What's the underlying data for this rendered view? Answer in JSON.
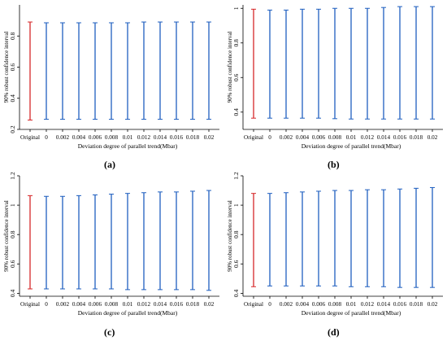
{
  "chart_data": [
    {
      "type": "errorbar",
      "panel_label": "(a)",
      "categories": [
        "Original",
        "0",
        "0.002",
        "0.004",
        "0.006",
        "0.008",
        "0.01",
        "0.012",
        "0.014",
        "0.016",
        "0.018",
        "0.02"
      ],
      "lower": [
        0.26,
        0.265,
        0.265,
        0.265,
        0.265,
        0.265,
        0.265,
        0.265,
        0.265,
        0.265,
        0.265,
        0.265
      ],
      "upper": [
        0.89,
        0.885,
        0.885,
        0.885,
        0.885,
        0.885,
        0.885,
        0.89,
        0.89,
        0.89,
        0.89,
        0.89
      ],
      "yticks": [
        "0.2",
        "0.4",
        "0.6",
        "0.8"
      ],
      "ylim": [
        0.2,
        1.0
      ],
      "xlabel": "Deviation degree of parallel trend(Mbar)",
      "ylabel": "90% robust confidence interval",
      "colors": {
        "original": "#d62728",
        "other": "#1f5fbf"
      }
    },
    {
      "type": "errorbar",
      "panel_label": "(b)",
      "categories": [
        "Original",
        "0",
        "0.002",
        "0.004",
        "0.006",
        "0.008",
        "0.01",
        "0.012",
        "0.014",
        "0.016",
        "0.018",
        "0.02"
      ],
      "lower": [
        0.365,
        0.365,
        0.365,
        0.365,
        0.365,
        0.362,
        0.36,
        0.36,
        0.36,
        0.36,
        0.36,
        0.36
      ],
      "upper": [
        0.995,
        0.99,
        0.99,
        0.995,
        0.995,
        1.0,
        1.0,
        1.0,
        1.005,
        1.01,
        1.01,
        1.01
      ],
      "yticks": [
        "0.4",
        "0.6",
        "0.8",
        "1"
      ],
      "ylim": [
        0.3,
        1.02
      ],
      "xlabel": "Deviation degree of parallel trend(Mbar)",
      "ylabel": "90% robust confidence interval",
      "colors": {
        "original": "#d62728",
        "other": "#1f5fbf"
      }
    },
    {
      "type": "errorbar",
      "panel_label": "(c)",
      "categories": [
        "Original",
        "0",
        "0.002",
        "0.004",
        "0.006",
        "0.008",
        "0.01",
        "0.012",
        "0.014",
        "0.016",
        "0.018",
        "0.02"
      ],
      "lower": [
        0.43,
        0.43,
        0.43,
        0.43,
        0.43,
        0.43,
        0.425,
        0.425,
        0.425,
        0.425,
        0.425,
        0.42
      ],
      "upper": [
        1.065,
        1.06,
        1.06,
        1.065,
        1.07,
        1.075,
        1.08,
        1.085,
        1.09,
        1.09,
        1.095,
        1.1
      ],
      "yticks": [
        "0.4",
        "0.6",
        "0.8",
        "1",
        "1.2"
      ],
      "ylim": [
        0.38,
        1.2
      ],
      "xlabel": "Deviation degree of parallel trend(Mbar)",
      "ylabel": "90% robust confidence interval",
      "colors": {
        "original": "#d62728",
        "other": "#1f5fbf"
      }
    },
    {
      "type": "errorbar",
      "panel_label": "(d)",
      "categories": [
        "Original",
        "0",
        "0.002",
        "0.004",
        "0.006",
        "0.008",
        "0.01",
        "0.012",
        "0.014",
        "0.016",
        "0.018",
        "0.02"
      ],
      "lower": [
        0.445,
        0.45,
        0.45,
        0.45,
        0.45,
        0.45,
        0.445,
        0.445,
        0.445,
        0.44,
        0.44,
        0.44
      ],
      "upper": [
        1.08,
        1.08,
        1.085,
        1.09,
        1.095,
        1.1,
        1.1,
        1.105,
        1.105,
        1.11,
        1.115,
        1.12
      ],
      "yticks": [
        "0.4",
        "0.6",
        "0.8",
        "1",
        "1.2"
      ],
      "ylim": [
        0.38,
        1.2
      ],
      "xlabel": "Deviation degree of parallel trend(Mbar)",
      "ylabel": "90% robust confidence interval",
      "colors": {
        "original": "#d62728",
        "other": "#1f5fbf"
      }
    }
  ]
}
